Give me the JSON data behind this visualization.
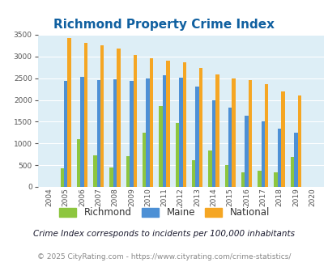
{
  "title": "Richmond Property Crime Index",
  "years": [
    2004,
    2005,
    2006,
    2007,
    2008,
    2009,
    2010,
    2011,
    2012,
    2013,
    2014,
    2015,
    2016,
    2017,
    2018,
    2019,
    2020
  ],
  "richmond": [
    0,
    420,
    1090,
    720,
    450,
    700,
    1250,
    1870,
    1470,
    620,
    840,
    500,
    330,
    380,
    330,
    680,
    0
  ],
  "maine": [
    0,
    2430,
    2530,
    2450,
    2480,
    2430,
    2490,
    2560,
    2510,
    2310,
    2000,
    1820,
    1640,
    1500,
    1340,
    1240,
    0
  ],
  "national": [
    0,
    3420,
    3320,
    3250,
    3190,
    3040,
    2950,
    2900,
    2860,
    2730,
    2590,
    2490,
    2460,
    2360,
    2200,
    2110,
    0
  ],
  "richmond_color": "#8dc63f",
  "maine_color": "#4d90d5",
  "national_color": "#f5a623",
  "bg_color": "#ddeef6",
  "ylim": [
    0,
    3500
  ],
  "title_color": "#1060a0",
  "title_fontsize": 11,
  "footnote1": "Crime Index corresponds to incidents per 100,000 inhabitants",
  "footnote2": "© 2025 CityRating.com - https://www.cityrating.com/crime-statistics/",
  "bar_width": 0.22
}
